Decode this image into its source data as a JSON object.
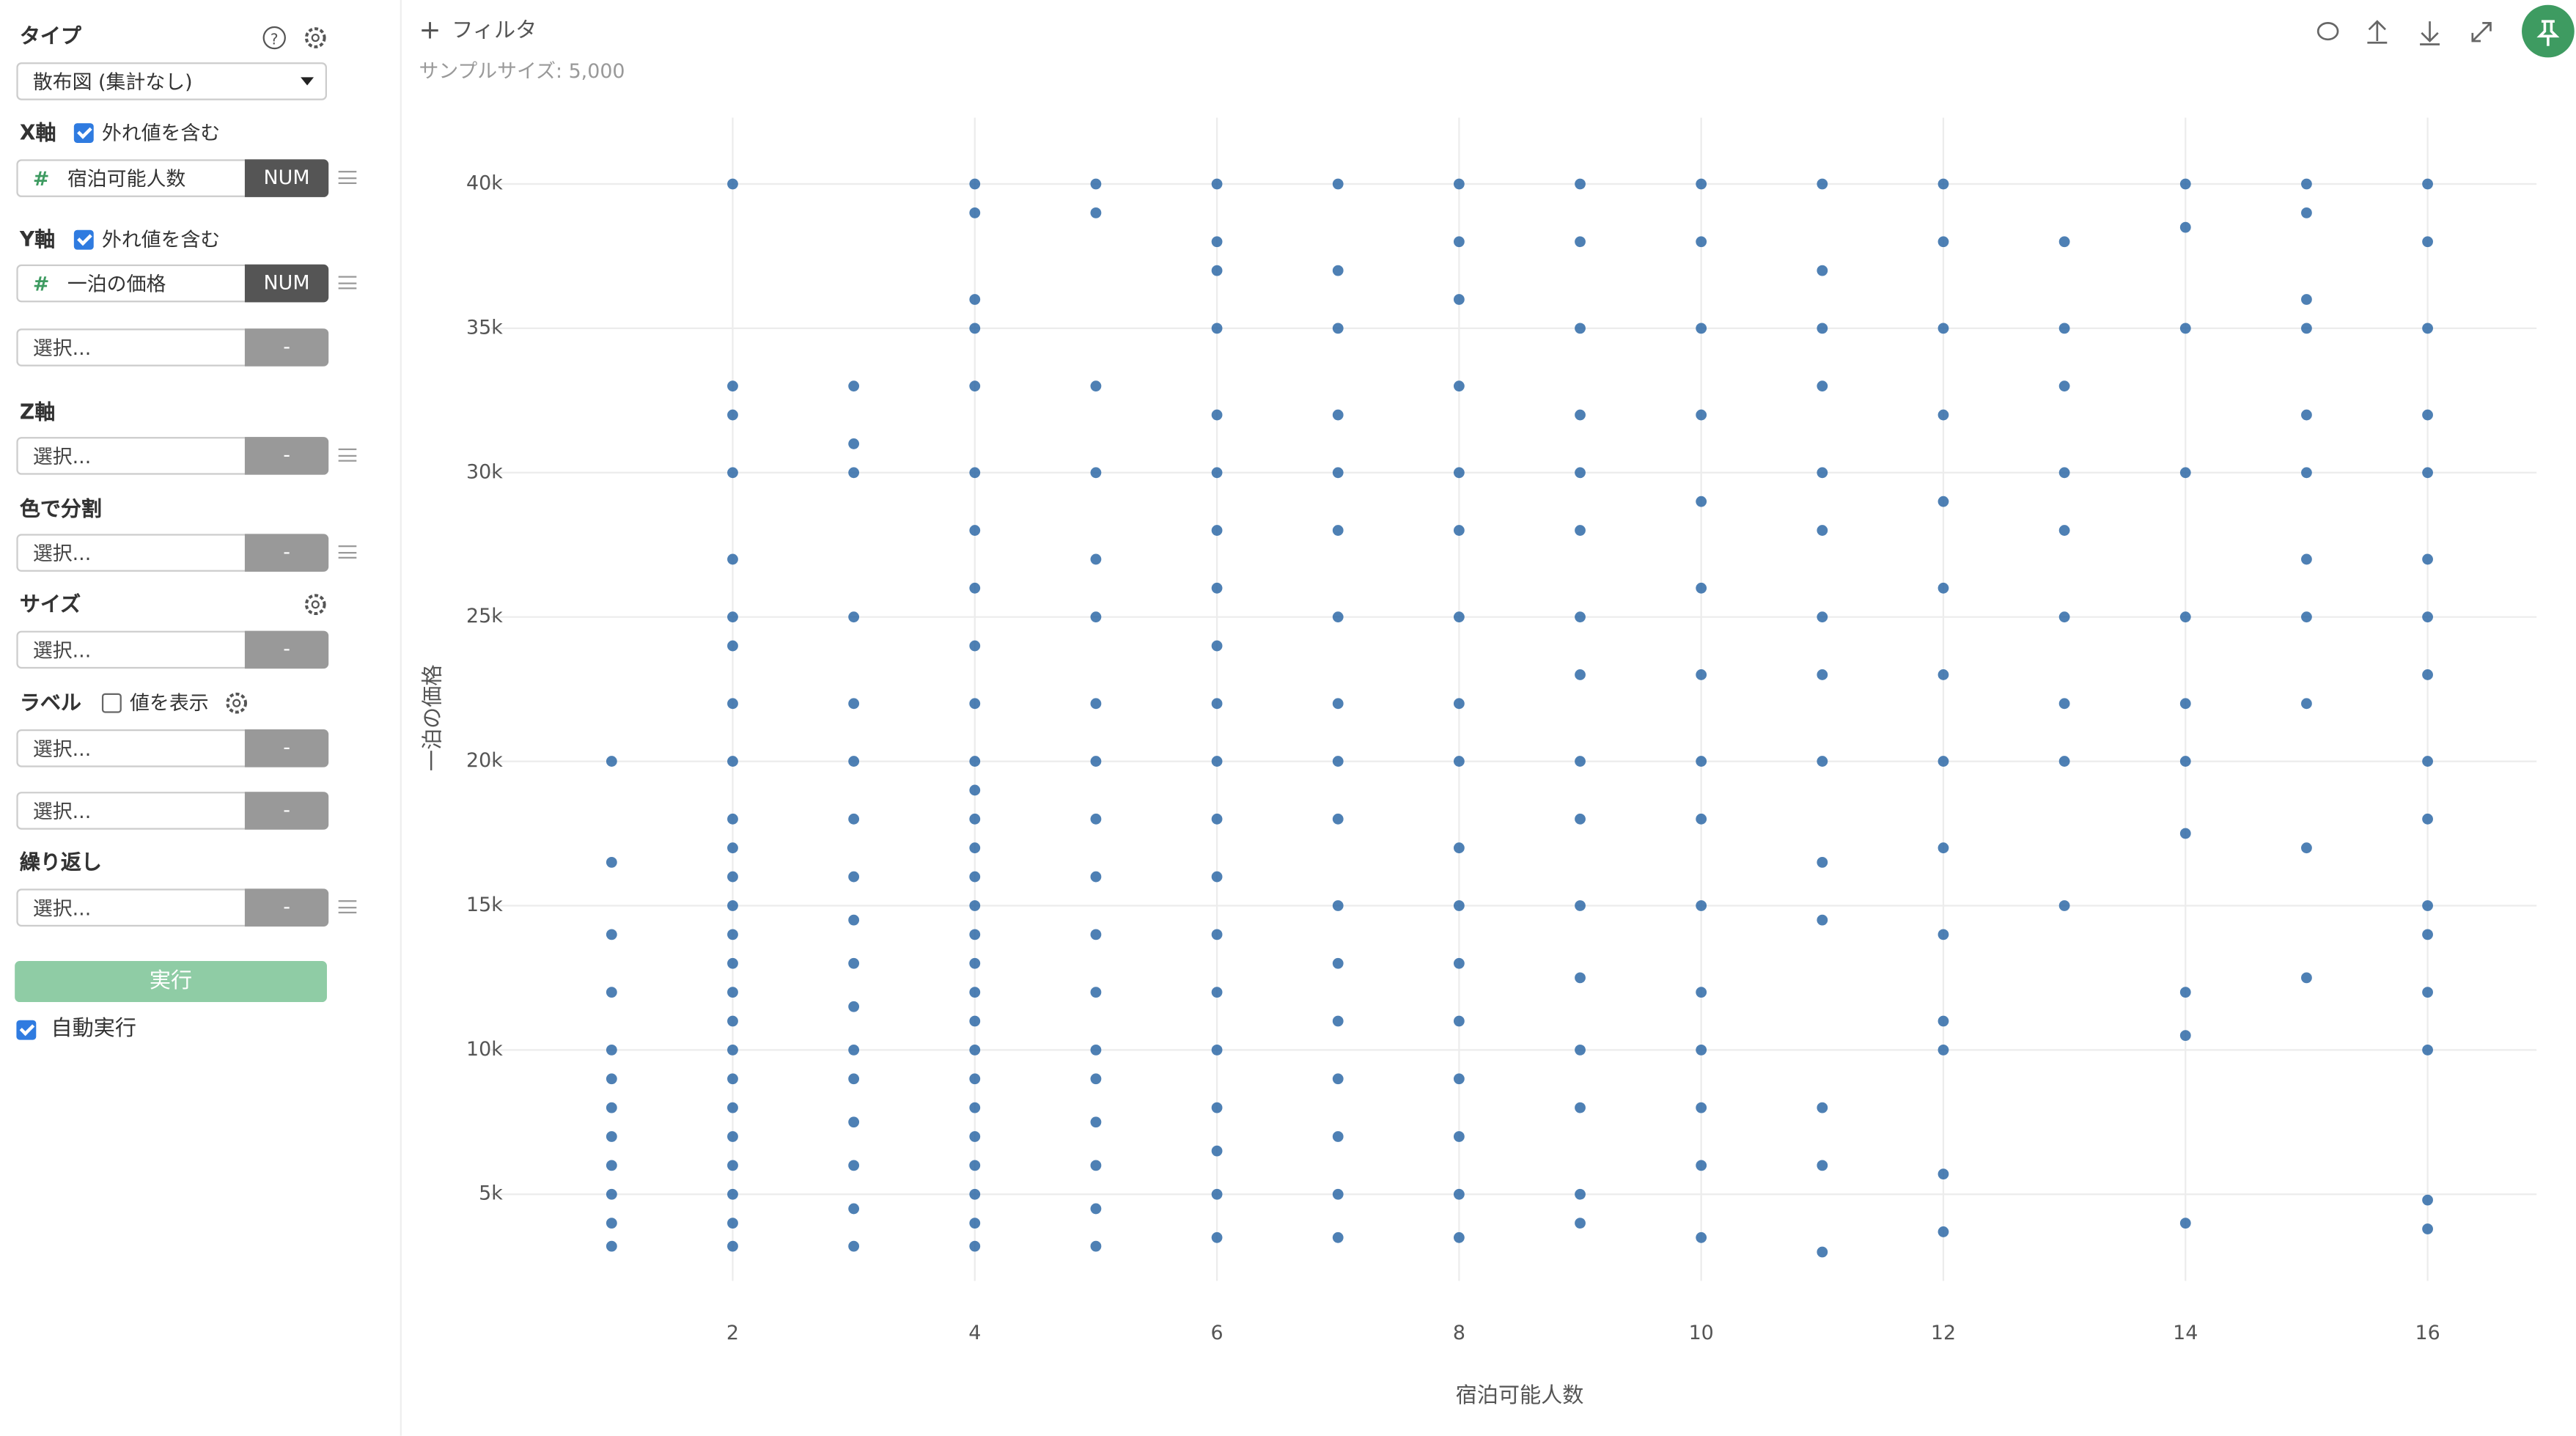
{
  "toolbar": {
    "filter": "フィルタ",
    "sample_size": "サンプルサイズ: 5,000"
  },
  "sidebar": {
    "type_label": "タイプ",
    "type_select": "散布図 (集計なし)",
    "x_label": "X軸",
    "x_outlier": "外れ値を含む",
    "x_field": "宿泊可能人数",
    "x_field_type": "NUM",
    "y_label": "Y軸",
    "y_outlier": "外れ値を含む",
    "y_field": "一泊の価格",
    "y_field_type": "NUM",
    "z_label": "Z軸",
    "color_label": "色で分割",
    "size_label": "サイズ",
    "label_label": "ラベル",
    "label_show": "値を表示",
    "repeat_label": "繰り返し",
    "slots": [
      {
        "placeholder": "選択...",
        "type": "-"
      },
      {
        "placeholder": "選択...",
        "type": "-"
      },
      {
        "placeholder": "選択...",
        "type": "-"
      },
      {
        "placeholder": "選択...",
        "type": "-"
      },
      {
        "placeholder": "選択...",
        "type": "-"
      },
      {
        "placeholder": "選択...",
        "type": "-"
      },
      {
        "placeholder": "選択...",
        "type": "-"
      }
    ],
    "run": "実行",
    "auto_run": "自動実行"
  },
  "chart_data": {
    "type": "scatter",
    "x_label": "宿泊可能人数",
    "y_label": "一泊の価格",
    "xlim": [
      0,
      16.9
    ],
    "ylim": [
      2000,
      42300
    ],
    "xticks": [
      2,
      4,
      6,
      8,
      10,
      12,
      14,
      16
    ],
    "yticks": [
      {
        "value": 5000,
        "label": "5k"
      },
      {
        "value": 10000,
        "label": "10k"
      },
      {
        "value": 15000,
        "label": "15k"
      },
      {
        "value": 20000,
        "label": "20k"
      },
      {
        "value": 25000,
        "label": "25k"
      },
      {
        "value": 30000,
        "label": "30k"
      },
      {
        "value": 35000,
        "label": "35k"
      },
      {
        "value": 40000,
        "label": "40k"
      }
    ],
    "grid": true,
    "series": [
      {
        "color": "#2f6aa7",
        "x": [
          1,
          1,
          1,
          1,
          1,
          1,
          1,
          1,
          1,
          1,
          1,
          1,
          2,
          2,
          2,
          2,
          2,
          2,
          2,
          2,
          2,
          2,
          2,
          2,
          2,
          2,
          2,
          2,
          2,
          2,
          2,
          2,
          2,
          2,
          2,
          2,
          2,
          3,
          3,
          3,
          3,
          3,
          3,
          3,
          3,
          3,
          3,
          3,
          3,
          3,
          3,
          3,
          3,
          3,
          4,
          4,
          4,
          4,
          4,
          4,
          4,
          4,
          4,
          4,
          4,
          4,
          4,
          4,
          4,
          4,
          4,
          4,
          4,
          4,
          4,
          4,
          4,
          4,
          4,
          4,
          4,
          4,
          5,
          5,
          5,
          5,
          5,
          5,
          5,
          5,
          5,
          5,
          5,
          5,
          5,
          5,
          5,
          5,
          5,
          5,
          6,
          6,
          6,
          6,
          6,
          6,
          6,
          6,
          6,
          6,
          6,
          6,
          6,
          6,
          6,
          6,
          6,
          6,
          6,
          6,
          7,
          7,
          7,
          7,
          7,
          7,
          7,
          7,
          7,
          7,
          7,
          7,
          7,
          7,
          7,
          7,
          7,
          8,
          8,
          8,
          8,
          8,
          8,
          8,
          8,
          8,
          8,
          8,
          8,
          8,
          8,
          8,
          8,
          8,
          9,
          9,
          9,
          9,
          9,
          9,
          9,
          9,
          9,
          9,
          9,
          9,
          9,
          9,
          9,
          9,
          10,
          10,
          10,
          10,
          10,
          10,
          10,
          10,
          10,
          10,
          10,
          10,
          10,
          10,
          10,
          11,
          11,
          11,
          11,
          11,
          11,
          11,
          11,
          11,
          11,
          11,
          11,
          11,
          11,
          12,
          12,
          12,
          12,
          12,
          12,
          12,
          12,
          12,
          12,
          12,
          12,
          12,
          12,
          13,
          13,
          13,
          13,
          13,
          13,
          13,
          13,
          13,
          14,
          14,
          14,
          14,
          14,
          14,
          14,
          14,
          14,
          14,
          14,
          15,
          15,
          15,
          15,
          15,
          15,
          15,
          15,
          15,
          15,
          15,
          16,
          16,
          16,
          16,
          16,
          16,
          16,
          16,
          16,
          16,
          16,
          16,
          16,
          16,
          16,
          16
        ],
        "values": [
          3200,
          4000,
          5000,
          6000,
          7000,
          8000,
          9000,
          10000,
          12000,
          14000,
          16500,
          20000,
          3200,
          4000,
          5000,
          6000,
          7000,
          8000,
          9000,
          10000,
          11000,
          12000,
          13000,
          14000,
          15000,
          16000,
          17000,
          18000,
          20000,
          22000,
          24000,
          25000,
          27000,
          30000,
          32000,
          33000,
          40000,
          3200,
          4500,
          6000,
          7500,
          9000,
          10000,
          11500,
          13000,
          14500,
          16000,
          18000,
          20000,
          22000,
          25000,
          30000,
          31000,
          33000,
          3200,
          4000,
          5000,
          6000,
          7000,
          8000,
          9000,
          10000,
          11000,
          12000,
          13000,
          14000,
          15000,
          16000,
          17000,
          18000,
          19000,
          20000,
          22000,
          24000,
          26000,
          28000,
          30000,
          33000,
          35000,
          36000,
          39000,
          40000,
          3200,
          4500,
          6000,
          7500,
          9000,
          10000,
          12000,
          14000,
          16000,
          18000,
          20000,
          22000,
          25000,
          27000,
          30000,
          33000,
          39000,
          40000,
          3500,
          5000,
          6500,
          8000,
          10000,
          12000,
          14000,
          16000,
          18000,
          20000,
          22000,
          24000,
          26000,
          28000,
          30000,
          32000,
          35000,
          37000,
          38000,
          40000,
          3500,
          5000,
          7000,
          9000,
          11000,
          13000,
          15000,
          18000,
          20000,
          22000,
          25000,
          28000,
          30000,
          32000,
          35000,
          37000,
          40000,
          3500,
          5000,
          7000,
          9000,
          11000,
          13000,
          15000,
          17000,
          20000,
          22000,
          25000,
          28000,
          30000,
          33000,
          36000,
          38000,
          40000,
          4000,
          5000,
          8000,
          10000,
          12500,
          15000,
          18000,
          20000,
          23000,
          25000,
          28000,
          30000,
          32000,
          35000,
          38000,
          40000,
          3500,
          6000,
          8000,
          10000,
          12000,
          15000,
          18000,
          20000,
          23000,
          26000,
          29000,
          32000,
          35000,
          38000,
          40000,
          3000,
          6000,
          8000,
          14500,
          16500,
          20000,
          23000,
          25000,
          28000,
          30000,
          33000,
          35000,
          37000,
          40000,
          3700,
          5700,
          10000,
          11000,
          14000,
          17000,
          20000,
          23000,
          26000,
          29000,
          32000,
          35000,
          38000,
          40000,
          15000,
          20000,
          22000,
          25000,
          28000,
          30000,
          33000,
          35000,
          38000,
          4000,
          10500,
          12000,
          17500,
          20000,
          22000,
          25000,
          30000,
          35000,
          38500,
          40000,
          12500,
          17000,
          22000,
          25000,
          27000,
          30000,
          32000,
          35000,
          36000,
          39000,
          40000,
          3800,
          4800,
          10000,
          12000,
          14000,
          15000,
          18000,
          20000,
          23000,
          25000,
          27000,
          30000,
          32000,
          35000,
          38000,
          40000
        ]
      }
    ]
  }
}
